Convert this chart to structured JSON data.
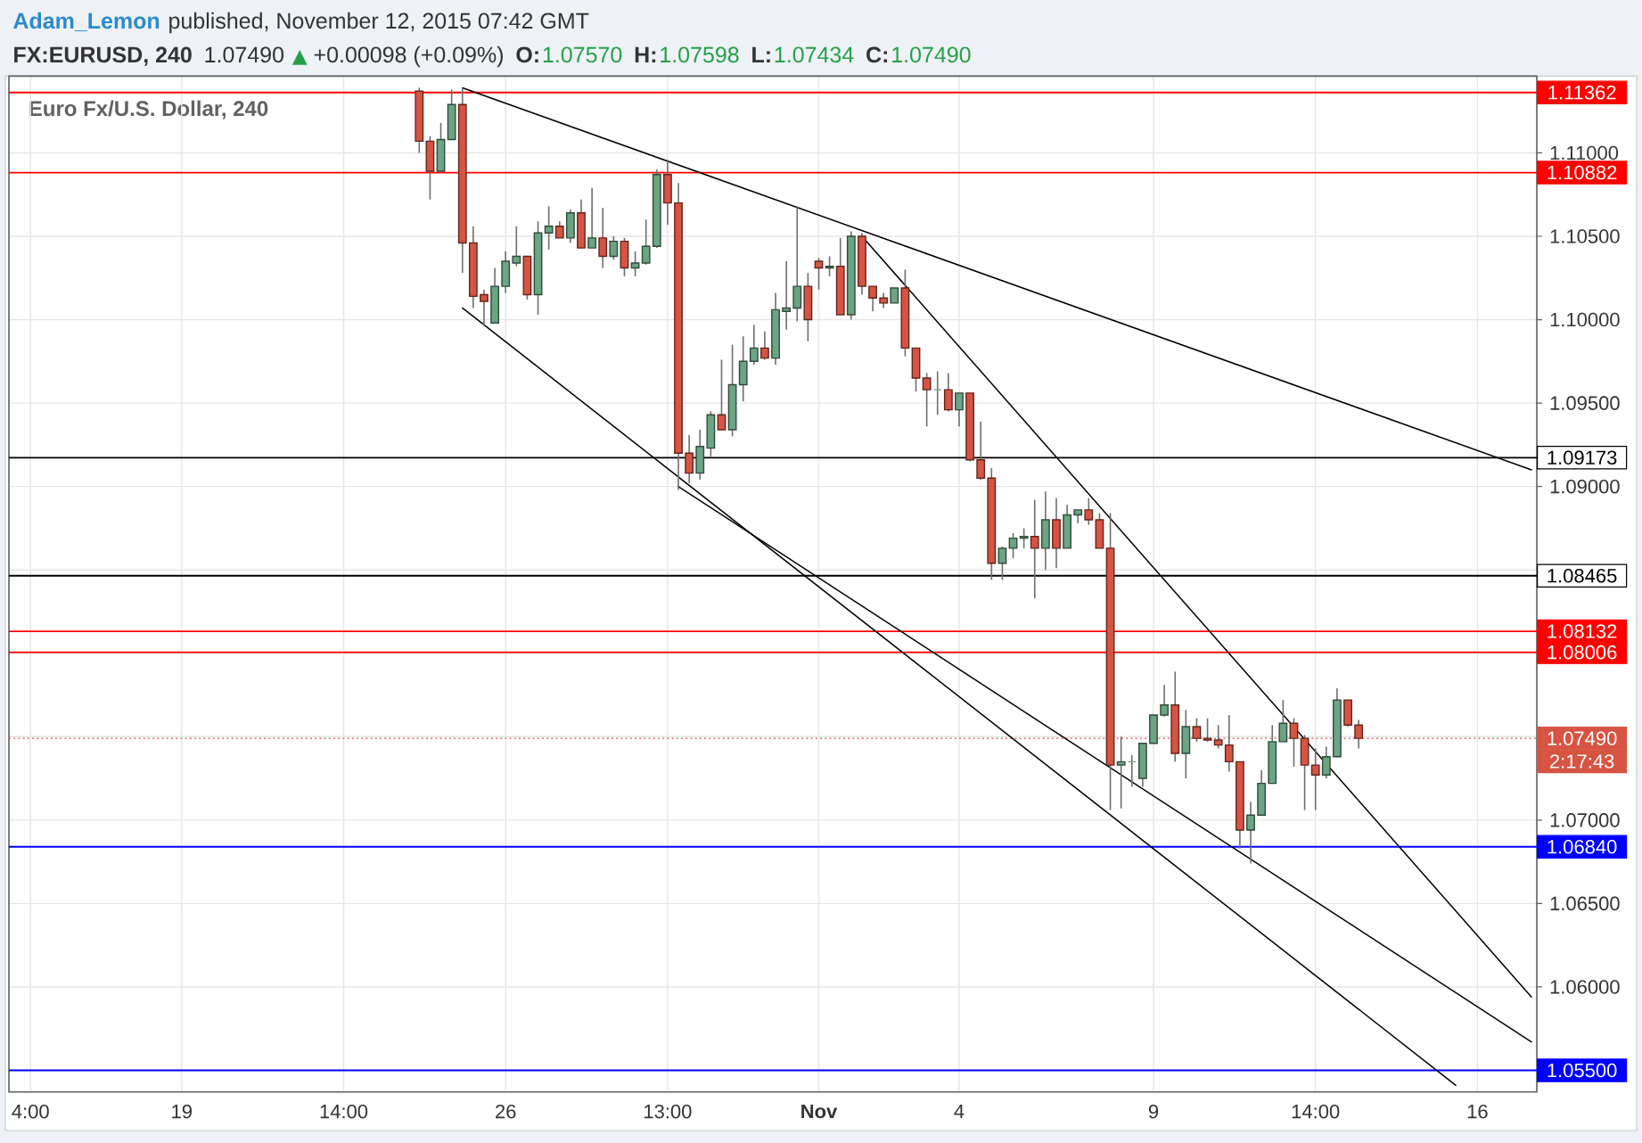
{
  "chart_data": {
    "type": "candlestick",
    "title": "FX:EURUSD, 240",
    "subtitle": "Euro Fx/U.S. Dollar, 240",
    "annotations": [
      "Adam_Lemon",
      "published, November 12, 2015 07:42 GMT",
      "1.07490",
      "▲",
      "+0.00098 (+0.09%)",
      "O:",
      "1.07570",
      "H:",
      "1.07598",
      "L:",
      "1.07434",
      "C:",
      "1.07490",
      "2:17:43"
    ],
    "categories": [
      null,
      null,
      "4:00",
      null,
      null,
      null,
      null,
      null,
      null,
      null,
      null,
      null,
      null,
      null,
      null,
      null,
      "19",
      null,
      null,
      null,
      null,
      null,
      null,
      null,
      null,
      null,
      null,
      null,
      null,
      null,
      null,
      "14:00",
      null,
      null,
      null,
      null,
      null,
      null,
      null,
      null,
      null,
      null,
      null,
      null,
      null,
      null,
      "26",
      null,
      null,
      null,
      null,
      null,
      null,
      null,
      null,
      null,
      null,
      null,
      null,
      null,
      null,
      "13:00",
      null,
      null,
      null,
      null,
      null,
      null,
      null,
      null,
      null,
      null,
      null,
      null,
      null,
      "**Nov**",
      null,
      null,
      null,
      null,
      null,
      null,
      null,
      null,
      null,
      null,
      null,
      null,
      "4",
      null,
      null,
      null,
      null,
      null,
      null,
      null,
      null,
      null,
      null,
      null,
      null,
      null,
      null,
      null,
      null,
      null,
      "9",
      null,
      null,
      null,
      null,
      null,
      null,
      null,
      null,
      null,
      null,
      null,
      null,
      null,
      null,
      "14:00",
      null,
      null,
      null,
      null,
      null,
      null,
      null,
      null,
      null,
      null,
      null,
      null,
      null,
      null,
      "16",
      null,
      null,
      null,
      null,
      null
    ],
    "ohlc": [
      null,
      null,
      null,
      null,
      null,
      null,
      null,
      null,
      null,
      null,
      null,
      null,
      null,
      null,
      null,
      null,
      null,
      null,
      null,
      null,
      null,
      null,
      null,
      null,
      null,
      null,
      null,
      null,
      null,
      null,
      null,
      null,
      null,
      null,
      null,
      null,
      null,
      null,
      [
        1.1137,
        1.1139,
        1.11,
        1.1107
      ],
      [
        1.1107,
        1.111,
        1.1072,
        1.1089
      ],
      [
        1.1089,
        1.1118,
        1.1089,
        1.1108
      ],
      [
        1.1108,
        1.1138,
        1.1108,
        1.1129
      ],
      [
        1.1129,
        1.1139,
        1.1028,
        1.1046
      ],
      [
        1.1046,
        1.1056,
        1.1007,
        1.1014
      ],
      [
        1.1015,
        1.1018,
        1.0996,
        1.1011
      ],
      [
        1.0998,
        1.1031,
        1.0998,
        1.102
      ],
      [
        1.102,
        1.1041,
        1.1016,
        1.1035
      ],
      [
        1.1034,
        1.1056,
        1.1032,
        1.1038
      ],
      [
        1.1038,
        1.1038,
        1.1012,
        1.1015
      ],
      [
        1.1015,
        1.1059,
        1.1003,
        1.1052
      ],
      [
        1.1052,
        1.1068,
        1.1042,
        1.1056
      ],
      [
        1.1056,
        1.1059,
        1.1049,
        1.1049
      ],
      [
        1.1049,
        1.1066,
        1.1046,
        1.1064
      ],
      [
        1.1064,
        1.1072,
        1.1043,
        1.1043
      ],
      [
        1.1043,
        1.1079,
        1.1043,
        1.1049
      ],
      [
        1.1049,
        1.1067,
        1.1031,
        1.1038
      ],
      [
        1.1038,
        1.105,
        1.1036,
        1.1047
      ],
      [
        1.1047,
        1.1049,
        1.1026,
        1.1031
      ],
      [
        1.1031,
        1.1041,
        1.1026,
        1.1034
      ],
      [
        1.1034,
        1.106,
        1.1033,
        1.1044
      ],
      [
        1.1044,
        1.109,
        1.1043,
        1.1087
      ],
      [
        1.1087,
        1.1096,
        1.1057,
        1.107
      ],
      [
        1.107,
        1.1082,
        1.0898,
        1.092
      ],
      [
        1.092,
        1.0931,
        1.0902,
        1.0908
      ],
      [
        1.0908,
        1.0934,
        1.0904,
        1.0924
      ],
      [
        1.0923,
        1.0945,
        1.0918,
        1.0943
      ],
      [
        1.0943,
        1.0976,
        1.0934,
        1.0934
      ],
      [
        1.0934,
        1.0985,
        1.093,
        1.0961
      ],
      [
        1.0961,
        1.099,
        1.0951,
        1.0975
      ],
      [
        1.0975,
        1.0997,
        1.0973,
        1.0983
      ],
      [
        1.0983,
        1.0993,
        1.0976,
        1.0977
      ],
      [
        1.0977,
        1.1016,
        1.0973,
        1.1006
      ],
      [
        1.1005,
        1.1035,
        1.0994,
        1.1007
      ],
      [
        1.1007,
        1.1068,
        1.0999,
        1.102
      ],
      [
        1.102,
        1.1028,
        1.0987,
        1.1
      ],
      [
        1.1035,
        1.1037,
        1.1018,
        1.1031
      ],
      [
        1.1031,
        1.1038,
        1.1026,
        1.1032
      ],
      [
        1.1032,
        1.1049,
        1.1003,
        1.1003
      ],
      [
        1.1003,
        1.1053,
        1.1,
        1.105
      ],
      [
        1.105,
        1.1052,
        1.1015,
        1.102
      ],
      [
        1.102,
        1.102,
        1.1005,
        1.1013
      ],
      [
        1.1013,
        1.1016,
        1.1007,
        1.101
      ],
      [
        1.101,
        1.1019,
        1.101,
        1.1019
      ],
      [
        1.1019,
        1.103,
        1.0978,
        1.0983
      ],
      [
        1.0983,
        1.0983,
        1.0957,
        1.0965
      ],
      [
        1.0965,
        1.0968,
        1.0936,
        1.0958
      ],
      [
        1.0958,
        1.0969,
        1.0943,
        1.0958
      ],
      [
        1.0958,
        1.0968,
        1.0945,
        1.0946
      ],
      [
        1.0946,
        1.0956,
        1.0936,
        1.0956
      ],
      [
        1.0956,
        1.0956,
        1.0915,
        1.0916
      ],
      [
        1.0916,
        1.0939,
        1.0904,
        1.0905
      ],
      [
        1.0905,
        1.0911,
        1.0844,
        1.0854
      ],
      [
        1.0854,
        1.0864,
        1.0844,
        1.0863
      ],
      [
        1.0863,
        1.0872,
        1.0857,
        1.0869
      ],
      [
        1.0869,
        1.0875,
        1.0863,
        1.087
      ],
      [
        1.087,
        1.0892,
        1.0833,
        1.0863
      ],
      [
        1.0863,
        1.0897,
        1.085,
        1.088
      ],
      [
        1.088,
        1.0893,
        1.0851,
        1.0863
      ],
      [
        1.0863,
        1.0889,
        1.0863,
        1.0883
      ],
      [
        1.0883,
        1.0886,
        1.0878,
        1.0886
      ],
      [
        1.0886,
        1.0893,
        1.0877,
        1.088
      ],
      [
        1.088,
        1.0884,
        1.0863,
        1.0863
      ],
      [
        1.0863,
        1.0884,
        1.0706,
        1.0733
      ],
      [
        1.0733,
        1.075,
        1.0707,
        1.0735
      ],
      [
        1.0735,
        1.0739,
        1.072,
        1.0735
      ],
      [
        1.0725,
        1.0746,
        1.072,
        1.0746
      ],
      [
        1.0746,
        1.0763,
        1.0746,
        1.0763
      ],
      [
        1.0763,
        1.0781,
        1.0762,
        1.0769
      ],
      [
        1.0769,
        1.0789,
        1.0735,
        1.074
      ],
      [
        1.074,
        1.0766,
        1.0725,
        1.0756
      ],
      [
        1.0756,
        1.0761,
        1.0747,
        1.0749
      ],
      [
        1.0749,
        1.0761,
        1.0747,
        1.0748
      ],
      [
        1.0748,
        1.0757,
        1.0743,
        1.0745
      ],
      [
        1.0745,
        1.0763,
        1.0729,
        1.0735
      ],
      [
        1.0735,
        1.0735,
        1.0683,
        1.0694
      ],
      [
        1.0694,
        1.0711,
        1.0674,
        1.0703
      ],
      [
        1.0703,
        1.073,
        1.0703,
        1.0722
      ],
      [
        1.0722,
        1.0757,
        1.0722,
        1.0747
      ],
      [
        1.0747,
        1.0772,
        1.0747,
        1.0758
      ],
      [
        1.0758,
        1.0761,
        1.0732,
        1.0749
      ],
      [
        1.0749,
        1.0751,
        1.0706,
        1.0733
      ],
      [
        1.0733,
        1.0743,
        1.0706,
        1.0727
      ],
      [
        1.0727,
        1.0744,
        1.0725,
        1.0738
      ],
      [
        1.0738,
        1.0779,
        1.0738,
        1.0772
      ],
      [
        1.0772,
        1.0772,
        1.0756,
        1.0757
      ],
      [
        1.0757,
        1.076,
        1.0743,
        1.0749
      ],
      null,
      null,
      null,
      null,
      null,
      null,
      null,
      null,
      null,
      null,
      null,
      null,
      null,
      null,
      null,
      null
    ],
    "colors": [
      null,
      null,
      null,
      null,
      null,
      null,
      null,
      null,
      null,
      null,
      null,
      null,
      null,
      null,
      null,
      null,
      null,
      null,
      null,
      null,
      null,
      null,
      null,
      null,
      null,
      null,
      null,
      null,
      null,
      null,
      null,
      null,
      null,
      null,
      null,
      null,
      null,
      null,
      "#d75442",
      "#d75442",
      "#6ba583",
      "#6ba583",
      "#d75442",
      "#d75442",
      "#d75442",
      "#6ba583",
      "#6ba583",
      "#6ba583",
      "#d75442",
      "#6ba583",
      "#6ba583",
      "#d75442",
      "#6ba583",
      "#d75442",
      "#6ba583",
      "#d75442",
      "#6ba583",
      "#d75442",
      "#6ba583",
      "#6ba583",
      "#6ba583",
      "#d75442",
      "#d75442",
      "#d75442",
      "#6ba583",
      "#6ba583",
      "#d75442",
      "#6ba583",
      "#6ba583",
      "#6ba583",
      "#d75442",
      "#6ba583",
      "#6ba583",
      "#6ba583",
      "#d75442",
      "#d75442",
      "#6ba583",
      "#d75442",
      "#6ba583",
      "#d75442",
      "#d75442",
      "#d75442",
      "#6ba583",
      "#d75442",
      "#d75442",
      "#d75442",
      "#6ba583",
      "#d75442",
      "#6ba583",
      "#d75442",
      "#d75442",
      "#d75442",
      "#6ba583",
      "#6ba583",
      "#6ba583",
      "#d75442",
      "#6ba583",
      "#d75442",
      "#6ba583",
      "#6ba583",
      "#d75442",
      "#d75442",
      "#d75442",
      "#6ba583",
      "#6ba583",
      "#6ba583",
      "#6ba583",
      "#6ba583",
      "#d75442",
      "#6ba583",
      "#d75442",
      "#d75442",
      "#d75442",
      "#d75442",
      "#d75442",
      "#6ba583",
      "#6ba583",
      "#6ba583",
      "#6ba583",
      "#d75442",
      "#d75442",
      "#d75442",
      "#6ba583",
      "#6ba583",
      "#d75442",
      "#d75442",
      null,
      null,
      null,
      null,
      null,
      null,
      null,
      null,
      null,
      null,
      null,
      null,
      null,
      null,
      null,
      null
    ],
    "series": [
      {
        "type": "line",
        "color": "#000000",
        "values": [
          null,
          null,
          null,
          null,
          null,
          null,
          null,
          null,
          null,
          null,
          null,
          null,
          null,
          null,
          null,
          null,
          null,
          null,
          null,
          null,
          null,
          null,
          null,
          null,
          null,
          null,
          null,
          null,
          null,
          null,
          null,
          null,
          null,
          null,
          null,
          null,
          null,
          null,
          null,
          null,
          null,
          null,
          1.1139,
          null,
          null,
          null,
          null,
          null,
          null,
          null,
          null,
          null,
          null,
          null,
          null,
          null,
          null,
          null,
          null,
          null,
          null,
          null,
          null,
          null,
          null,
          null,
          null,
          null,
          null,
          null,
          null,
          null,
          null,
          null,
          null,
          null,
          null,
          null,
          null,
          null,
          null,
          null,
          null,
          null,
          null,
          null,
          null,
          null,
          null,
          null,
          null,
          null,
          null,
          null,
          null,
          null,
          null,
          null,
          null,
          null,
          null,
          null,
          null,
          null,
          null,
          null,
          null,
          null,
          null,
          null,
          null,
          null,
          null,
          null,
          null,
          null,
          null,
          null,
          null,
          null,
          null,
          null,
          null,
          null,
          null,
          null,
          null,
          null,
          null,
          null,
          null,
          null,
          null,
          null,
          null,
          null,
          null,
          null,
          null,
          null,
          null,
          1.091
        ]
      },
      {
        "type": "line",
        "color": "#000000",
        "values": [
          null,
          null,
          null,
          null,
          null,
          null,
          null,
          null,
          null,
          null,
          null,
          null,
          null,
          null,
          null,
          null,
          null,
          null,
          null,
          null,
          null,
          null,
          null,
          null,
          null,
          null,
          null,
          null,
          null,
          null,
          null,
          null,
          null,
          null,
          null,
          null,
          null,
          null,
          null,
          null,
          null,
          null,
          null,
          null,
          null,
          null,
          null,
          null,
          null,
          null,
          null,
          null,
          null,
          null,
          null,
          null,
          null,
          null,
          null,
          null,
          null,
          null,
          null,
          null,
          null,
          null,
          null,
          null,
          null,
          null,
          null,
          null,
          null,
          null,
          null,
          null,
          null,
          null,
          null,
          1.105,
          null,
          null,
          null,
          null,
          null,
          null,
          null,
          null,
          null,
          null,
          null,
          null,
          null,
          null,
          null,
          null,
          null,
          null,
          null,
          null,
          null,
          null,
          null,
          null,
          null,
          null,
          null,
          null,
          null,
          null,
          null,
          null,
          null,
          null,
          null,
          null,
          null,
          null,
          null,
          null,
          null,
          null,
          null,
          null,
          null,
          null,
          null,
          null,
          null,
          null,
          null,
          null,
          null,
          null,
          null,
          null,
          null,
          null,
          null,
          null,
          null,
          1.0594
        ]
      },
      {
        "type": "line",
        "color": "#000000",
        "values": [
          null,
          null,
          null,
          null,
          null,
          null,
          null,
          null,
          null,
          null,
          null,
          null,
          null,
          null,
          null,
          null,
          null,
          null,
          null,
          null,
          null,
          null,
          null,
          null,
          null,
          null,
          null,
          null,
          null,
          null,
          null,
          null,
          null,
          null,
          null,
          null,
          null,
          null,
          null,
          null,
          null,
          null,
          1.1007,
          null,
          null,
          null,
          null,
          null,
          null,
          null,
          null,
          null,
          null,
          null,
          null,
          null,
          null,
          null,
          null,
          null,
          null,
          null,
          null,
          null,
          null,
          null,
          null,
          null,
          null,
          null,
          null,
          null,
          null,
          null,
          null,
          null,
          null,
          null,
          null,
          null,
          null,
          null,
          null,
          null,
          null,
          null,
          null,
          null,
          null,
          null,
          null,
          null,
          null,
          null,
          null,
          null,
          null,
          null,
          null,
          null,
          null,
          null,
          null,
          null,
          null,
          null,
          null,
          null,
          null,
          null,
          null,
          null,
          null,
          null,
          null,
          null,
          null,
          null,
          null,
          null,
          null,
          null,
          null,
          null,
          null,
          null,
          null,
          null,
          null,
          null,
          null,
          null,
          null,
          null,
          1.0541,
          null,
          null,
          null,
          null,
          null,
          null,
          null
        ]
      },
      {
        "type": "line",
        "color": "#000000",
        "values": [
          null,
          null,
          null,
          null,
          null,
          null,
          null,
          null,
          null,
          null,
          null,
          null,
          null,
          null,
          null,
          null,
          null,
          null,
          null,
          null,
          null,
          null,
          null,
          null,
          null,
          null,
          null,
          null,
          null,
          null,
          null,
          null,
          null,
          null,
          null,
          null,
          null,
          null,
          null,
          null,
          null,
          null,
          null,
          null,
          null,
          null,
          null,
          null,
          null,
          null,
          null,
          null,
          null,
          null,
          null,
          null,
          null,
          null,
          null,
          null,
          null,
          null,
          1.09,
          null,
          null,
          null,
          null,
          null,
          null,
          null,
          null,
          null,
          null,
          null,
          null,
          null,
          null,
          null,
          null,
          null,
          null,
          null,
          null,
          null,
          null,
          null,
          null,
          null,
          null,
          null,
          null,
          null,
          null,
          null,
          null,
          null,
          null,
          null,
          null,
          null,
          null,
          null,
          null,
          null,
          null,
          null,
          null,
          null,
          null,
          null,
          null,
          null,
          null,
          null,
          null,
          null,
          null,
          null,
          null,
          null,
          null,
          null,
          null,
          null,
          null,
          null,
          null,
          null,
          null,
          null,
          null,
          null,
          null,
          null,
          null,
          null,
          null,
          null,
          null,
          null,
          null,
          1.0567
        ]
      }
    ],
    "ylim": [
      1.0537,
      1.1146
    ],
    "yticks": [
      {
        "value": 1.055,
        "label": null
      },
      {
        "value": 1.06,
        "label": "1.06000"
      },
      {
        "value": 1.065,
        "label": "1.06500"
      },
      {
        "value": 1.07,
        "label": "1.07000"
      },
      {
        "value": 1.075,
        "label": null
      },
      {
        "value": 1.08,
        "label": null
      },
      {
        "value": 1.085,
        "label": null
      },
      {
        "value": 1.09,
        "label": "1.09000"
      },
      {
        "value": 1.095,
        "label": "1.09500"
      },
      {
        "value": 1.1,
        "label": "1.10000"
      },
      {
        "value": 1.105,
        "label": "1.10500"
      },
      {
        "value": 1.11,
        "label": "1.11000"
      }
    ],
    "grid": true,
    "ref_lines": [
      {
        "axis": "y",
        "value": 1.11362,
        "label": "1.11362",
        "color": "#ff0000"
      },
      {
        "axis": "y",
        "value": 1.10882,
        "label": "1.10882",
        "color": "#ff0000"
      },
      {
        "axis": "y",
        "value": 1.09173,
        "label": "1.09173",
        "color": "#000000"
      },
      {
        "axis": "y",
        "value": 1.08465,
        "label": "1.08465",
        "color": "#000000"
      },
      {
        "axis": "y",
        "value": 1.08132,
        "label": "1.08132",
        "color": "#ff0000"
      },
      {
        "axis": "y",
        "value": 1.08006,
        "label": "1.08006",
        "color": "#ff0000"
      },
      {
        "axis": "y",
        "value": 1.0749,
        "label": "1.07490",
        "color": "#d75442",
        "line_style": "dotted"
      },
      {
        "axis": "y",
        "value": 1.0684,
        "label": "1.06840",
        "color": "#0000ff"
      },
      {
        "axis": "y",
        "value": 1.055,
        "label": "1.05500",
        "color": "#0000ff"
      }
    ]
  }
}
